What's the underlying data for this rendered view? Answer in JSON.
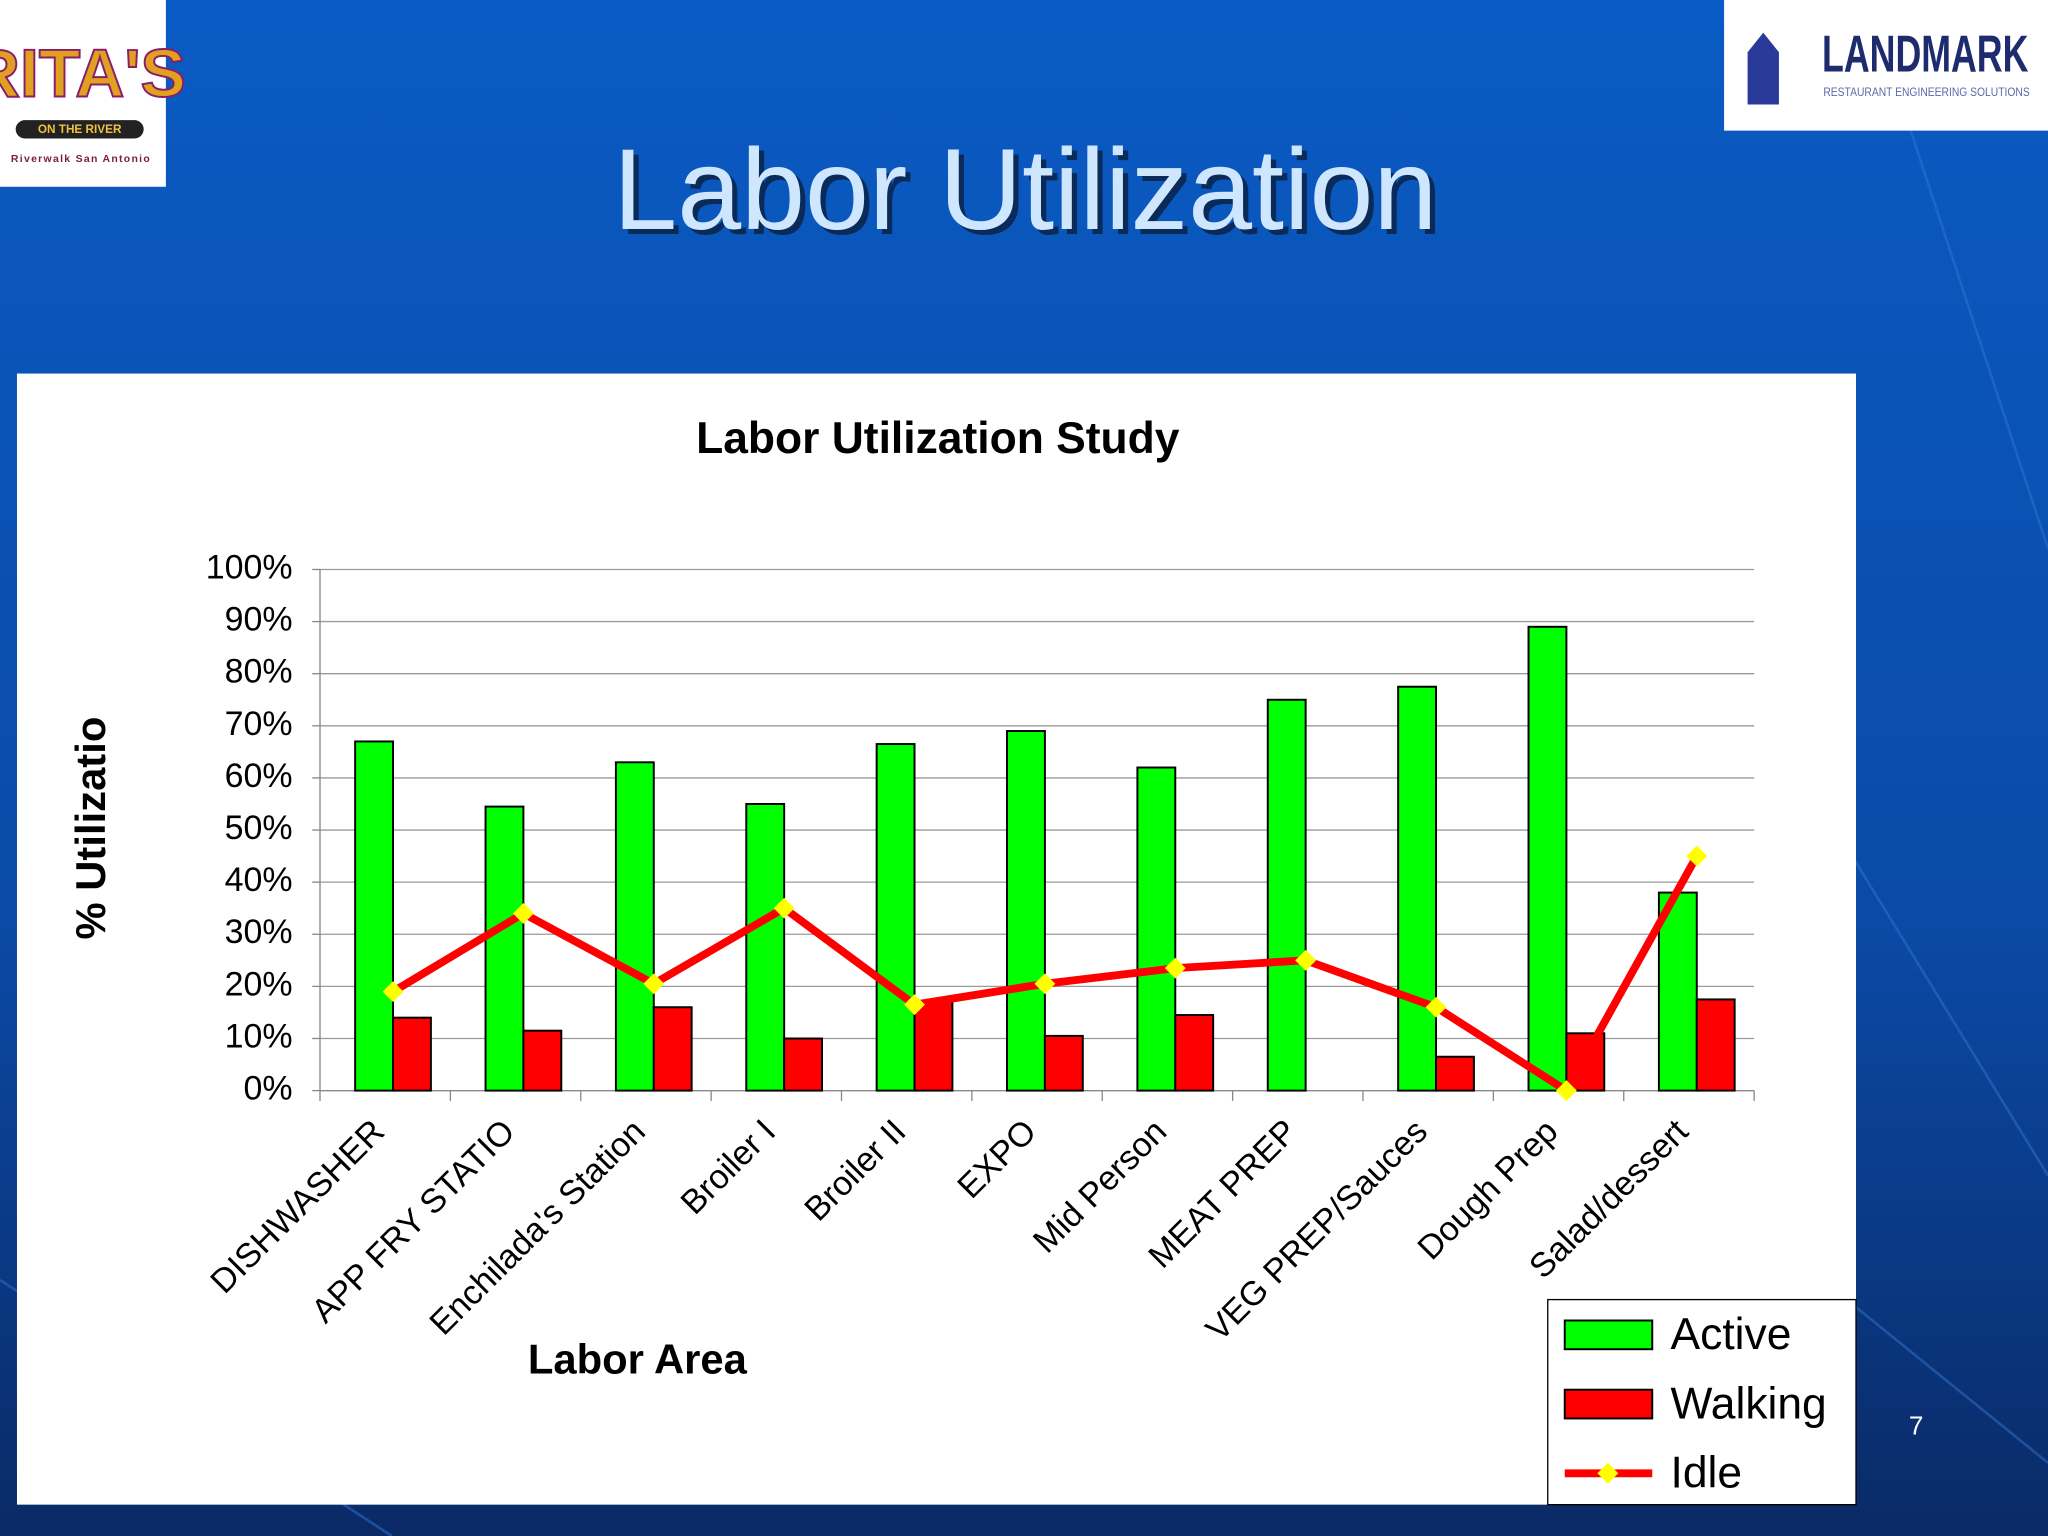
{
  "slide": {
    "title": "Labor Utilization",
    "page_number": "7",
    "logo_left": {
      "name": "RITA'S",
      "tagline": "ON THE RIVER",
      "place": "Riverwalk San Antonio"
    },
    "logo_right": {
      "name": "LANDMARK",
      "tagline": "RESTAURANT ENGINEERING SOLUTIONS"
    }
  },
  "chart_data": {
    "type": "bar",
    "title": "Labor Utilization Study",
    "x_label": "Labor Area",
    "y_label": "% Utilizatio",
    "categories": [
      "DISHWASHER",
      "APP FRY STATIO",
      "Enchilada's Station",
      "Broiler I",
      "Broiler II",
      "EXPO",
      "Mid Person",
      "MEAT PREP",
      "VEG PREP/Sauces",
      "Dough Prep",
      "Salad/dessert"
    ],
    "series": [
      {
        "name": "Active",
        "type": "bar",
        "color": "#00ff00",
        "values": [
          67,
          54.5,
          63,
          55,
          66.5,
          69,
          62,
          75,
          77.5,
          89,
          38
        ]
      },
      {
        "name": "Walking",
        "type": "bar",
        "color": "#ff0000",
        "values": [
          14,
          11.5,
          16,
          10,
          17,
          10.5,
          14.5,
          0,
          6.5,
          11,
          17.5
        ]
      },
      {
        "name": "Idle",
        "type": "line",
        "color": "#ff0000",
        "marker_color": "#ffff00",
        "values": [
          19,
          34,
          20.5,
          35,
          16.5,
          20.5,
          23.5,
          25,
          16,
          0,
          45
        ]
      }
    ],
    "ylim": [
      0,
      100
    ],
    "yticks": [
      {
        "value": 0,
        "label": "0%"
      },
      {
        "value": 10,
        "label": "10%"
      },
      {
        "value": 20,
        "label": "20%"
      },
      {
        "value": 30,
        "label": "30%"
      },
      {
        "value": 40,
        "label": "40%"
      },
      {
        "value": 50,
        "label": "50%"
      },
      {
        "value": 60,
        "label": "60%"
      },
      {
        "value": 70,
        "label": "70%"
      },
      {
        "value": 80,
        "label": "80%"
      },
      {
        "value": 90,
        "label": "90%"
      },
      {
        "value": 100,
        "label": "100%"
      }
    ],
    "grid": true,
    "legend": "bottom-right"
  }
}
